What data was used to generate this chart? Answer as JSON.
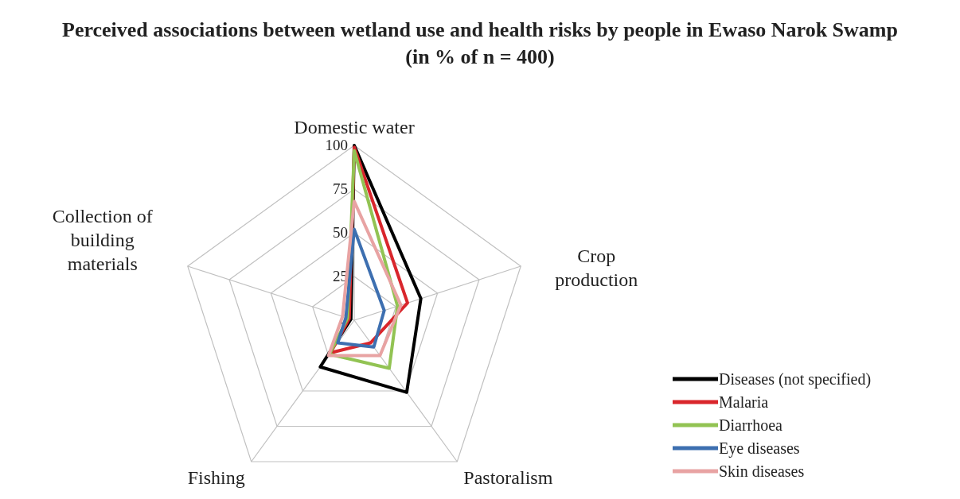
{
  "chart_data": {
    "type": "radar",
    "title": "Perceived associations between wetland use and health risks by people in Ewaso Narok Swamp (in % of n = 400)",
    "categories": [
      "Domestic water",
      "Crop production",
      "Pastoralism",
      "Fishing",
      "Collection of building materials"
    ],
    "ylim": [
      0,
      100
    ],
    "yticks": [
      0,
      25,
      50,
      75,
      100
    ],
    "grid": true,
    "legend": "bottom right",
    "series": [
      {
        "name": "Diseases (not specified)",
        "color": "#000000",
        "values": [
          100,
          40,
          51,
          33,
          2
        ]
      },
      {
        "name": "Malaria",
        "color": "#d9262c",
        "values": [
          99,
          32,
          16,
          23,
          3
        ]
      },
      {
        "name": "Diarrhoea",
        "color": "#92c353",
        "values": [
          97,
          26,
          34,
          24,
          4
        ]
      },
      {
        "name": "Eye diseases",
        "color": "#3d6fb0",
        "values": [
          52,
          18,
          19,
          16,
          5
        ]
      },
      {
        "name": "Skin diseases",
        "color": "#e8a3a3",
        "values": [
          68,
          28,
          25,
          25,
          7
        ]
      }
    ]
  }
}
